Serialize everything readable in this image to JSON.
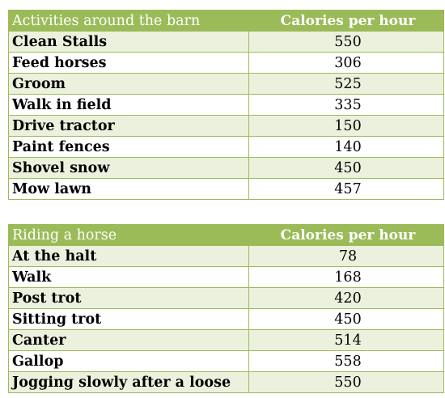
{
  "barn_table": {
    "header_activity": "Activities around the barn",
    "header_calories": "Calories per hour",
    "rows": [
      {
        "activity": "Clean Stalls",
        "calories": "550"
      },
      {
        "activity": "Feed horses",
        "calories": "306"
      },
      {
        "activity": "Groom",
        "calories": "525"
      },
      {
        "activity": "Walk in field",
        "calories": "335"
      },
      {
        "activity": "Drive tractor",
        "calories": "150"
      },
      {
        "activity": "Paint fences",
        "calories": "140"
      },
      {
        "activity": "Shovel snow",
        "calories": "450"
      },
      {
        "activity": "Mow lawn",
        "calories": "457"
      }
    ]
  },
  "riding_table": {
    "header_activity": "Riding a horse",
    "header_calories": "Calories per hour",
    "rows": [
      {
        "activity": "At the halt",
        "calories": "78"
      },
      {
        "activity": "Walk",
        "calories": "168"
      },
      {
        "activity": "Post trot",
        "calories": "420"
      },
      {
        "activity": "Sitting trot",
        "calories": "450"
      },
      {
        "activity": "Canter",
        "calories": "514"
      },
      {
        "activity": "Gallop",
        "calories": "558"
      },
      {
        "activity": "Jogging slowly after a loose",
        "calories": "550"
      }
    ]
  },
  "colors": {
    "header_bg": "#9bbb59",
    "stripe_bg": "#ebf1dd"
  }
}
